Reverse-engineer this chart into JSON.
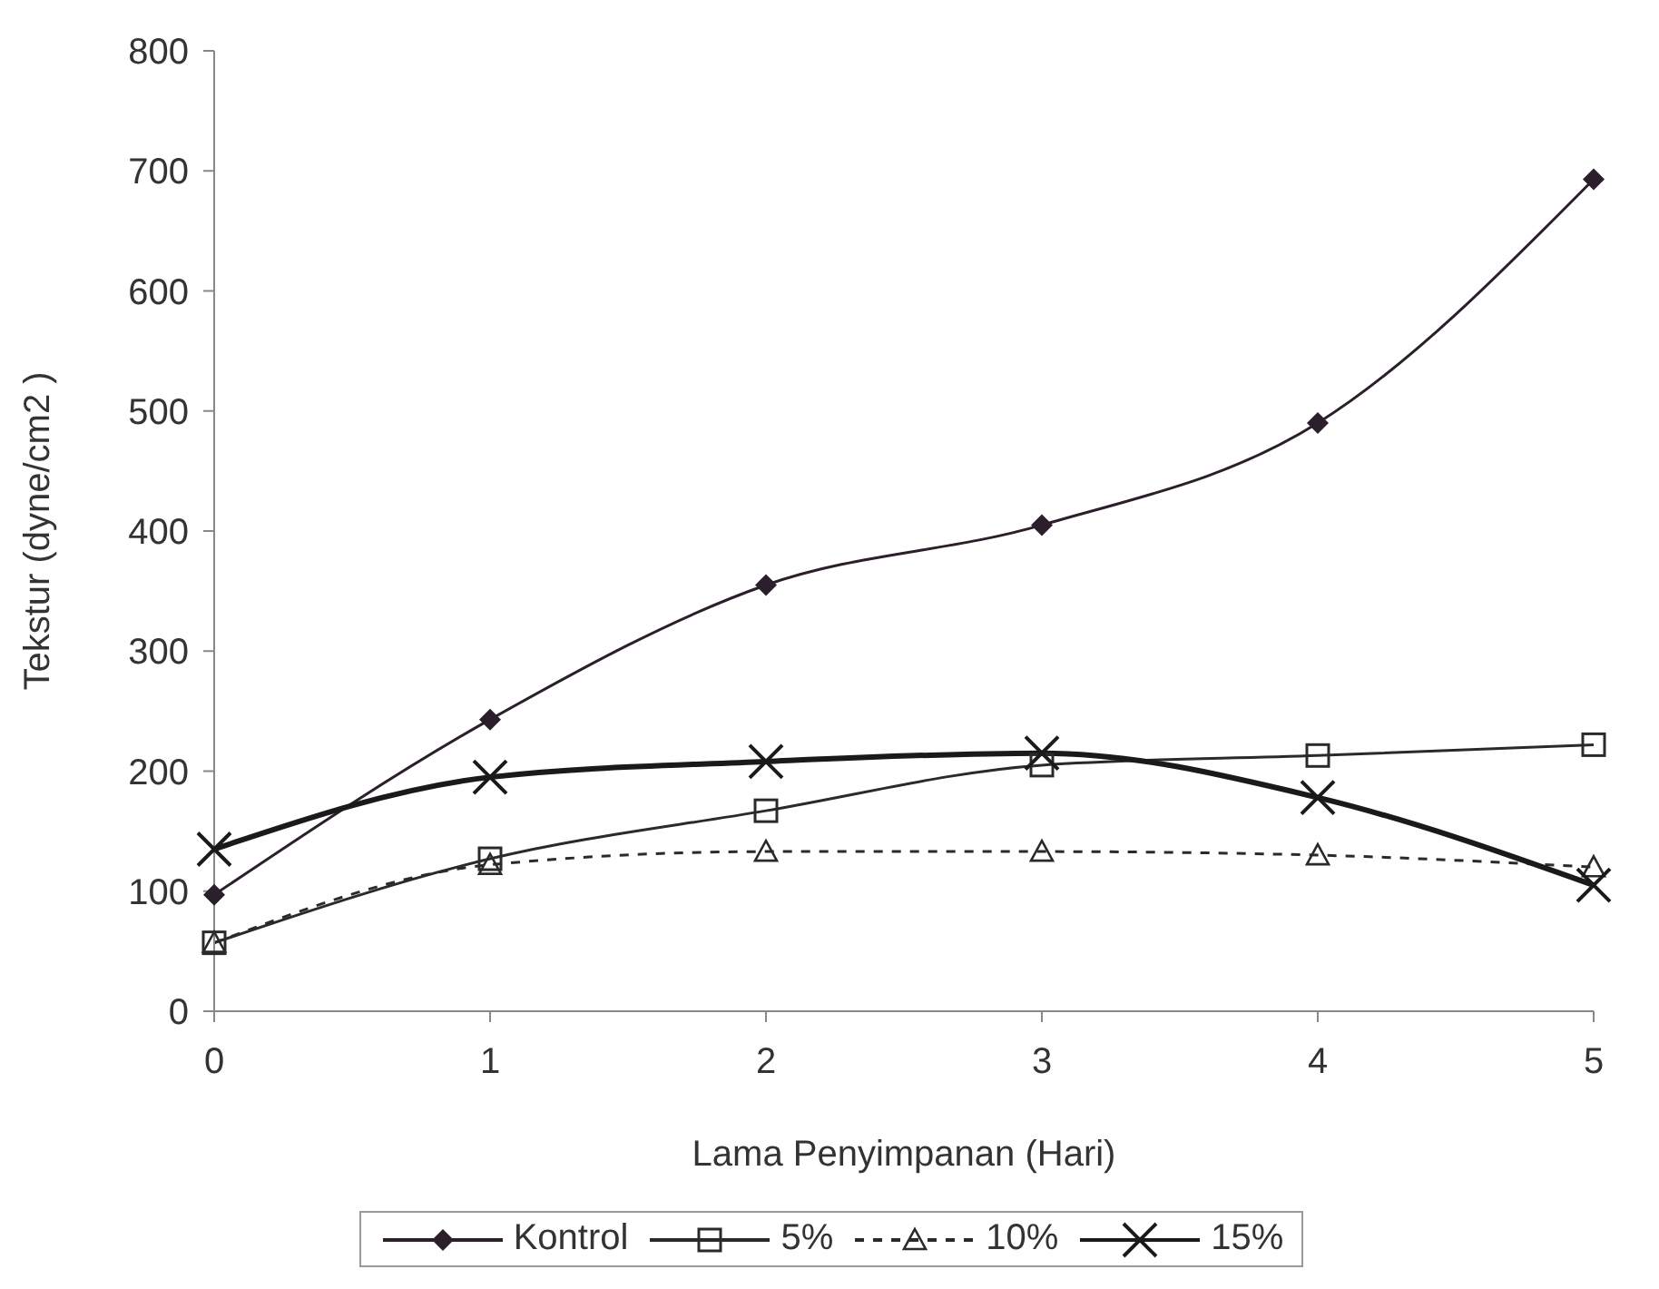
{
  "chart_data": {
    "type": "line",
    "xlabel": "Lama Penyimpanan (Hari)",
    "ylabel": "Tekstur (dyne/cm2  )",
    "x": [
      0,
      1,
      2,
      3,
      4,
      5
    ],
    "xlim": [
      0,
      5
    ],
    "xticks": [
      0,
      1,
      2,
      3,
      4,
      5
    ],
    "ylim": [
      0,
      800
    ],
    "yticks": [
      0,
      100,
      200,
      300,
      400,
      500,
      600,
      700,
      800
    ],
    "grid": false,
    "legend": "bottom",
    "series": [
      {
        "name": "Kontrol",
        "color": "#2a1f2a",
        "marker": "diamond",
        "line_style": "solid",
        "values": [
          97,
          243,
          355,
          405,
          490,
          693
        ]
      },
      {
        "name": "5%",
        "color": "#2a2a2a",
        "marker": "square",
        "line_style": "solid",
        "values": [
          57,
          127,
          167,
          205,
          213,
          222
        ]
      },
      {
        "name": "10%",
        "color": "#2a2a2a",
        "marker": "triangle",
        "line_style": "dashed",
        "values": [
          57,
          122,
          133,
          133,
          130,
          120
        ]
      },
      {
        "name": "15%",
        "color": "#1a1a1a",
        "marker": "cross",
        "line_style": "solid",
        "values": [
          135,
          195,
          208,
          215,
          178,
          105
        ]
      }
    ]
  }
}
